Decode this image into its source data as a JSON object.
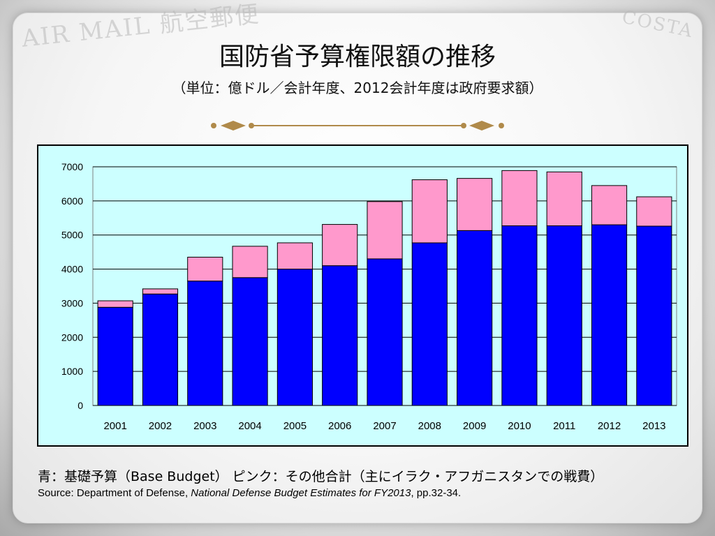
{
  "slide": {
    "title": "国防省予算権限額の推移",
    "subtitle": "（単位：億ドル／会計年度、2012会計年度は政府要求額）",
    "caption": "青：基礎予算（Base Budget） ピンク：その他合計（主にイラク・アフガニスタンでの戦費）",
    "source_prefix": "Source: Department of Defense, ",
    "source_italic": "National Defense Budget Estimates for FY2013",
    "source_suffix": ", pp.32-34."
  },
  "colors": {
    "base": "#0000ff",
    "other": "#ff99cc",
    "plot_background": "#ccffff",
    "gridline": "#000000"
  },
  "chart_data": {
    "type": "bar",
    "stacked": true,
    "categories": [
      "2001",
      "2002",
      "2003",
      "2004",
      "2005",
      "2006",
      "2007",
      "2008",
      "2009",
      "2010",
      "2011",
      "2012",
      "2013"
    ],
    "series": [
      {
        "name": "",
        "values": [
          2880,
          3270,
          3650,
          3750,
          4000,
          4100,
          4300,
          4770,
          5130,
          5270,
          5270,
          5300,
          5260
        ]
      },
      {
        "name": "",
        "values": [
          190,
          150,
          700,
          920,
          770,
          1210,
          1680,
          1850,
          1530,
          1620,
          1580,
          1150,
          860
        ]
      }
    ],
    "yticks": [
      "0",
      "1000",
      "2000",
      "3000",
      "4000",
      "5000",
      "6000",
      "7000"
    ],
    "ylim": [
      0,
      7000
    ],
    "grid": true,
    "legend": "none"
  }
}
